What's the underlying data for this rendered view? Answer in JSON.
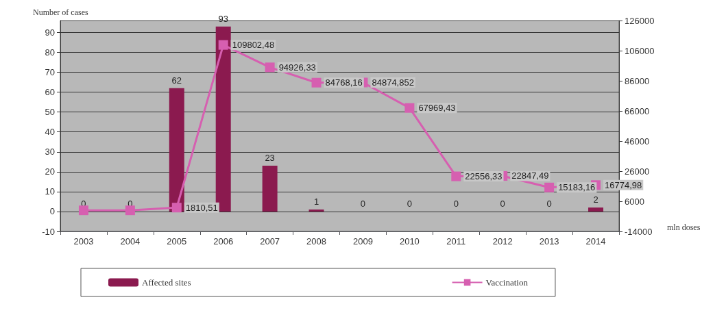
{
  "chart_data": {
    "type": "bar",
    "ylabel": "Number of cases",
    "y2label": "mln doses",
    "categories": [
      "2003",
      "2004",
      "2005",
      "2006",
      "2007",
      "2008",
      "2009",
      "2010",
      "2011",
      "2012",
      "2013",
      "2014"
    ],
    "series": [
      {
        "name": "Affected sites",
        "color": "#8b1a4f",
        "values": [
          0,
          0,
          62,
          93,
          23,
          1,
          0,
          0,
          0,
          0,
          0,
          2
        ],
        "data_labels": true
      },
      {
        "name": "Vaccination",
        "type": "line",
        "axis": "y2",
        "color": "#d65fb0",
        "marker": "square",
        "values": [
          0,
          0,
          1810.51,
          109802.48,
          94926.33,
          84768.16,
          84874.852,
          67969.43,
          22556.33,
          22847.49,
          15183.16,
          16774.98
        ],
        "value_labels": [
          null,
          null,
          "1810,51",
          "109802,48",
          "94926,33",
          "84768,16",
          "84874,852",
          "67969,43",
          "22556,33",
          "22847,49",
          "15183,16",
          "16774,98"
        ]
      }
    ],
    "ylim": [
      -10,
      96
    ],
    "yticks": [
      -10,
      0,
      10,
      20,
      30,
      40,
      50,
      60,
      70,
      80,
      90
    ],
    "y2lim": [
      -14000,
      126000
    ],
    "y2ticks": [
      -14000,
      6000,
      26000,
      46000,
      66000,
      86000,
      106000,
      126000
    ],
    "grid": "y",
    "legend": "bottom"
  }
}
